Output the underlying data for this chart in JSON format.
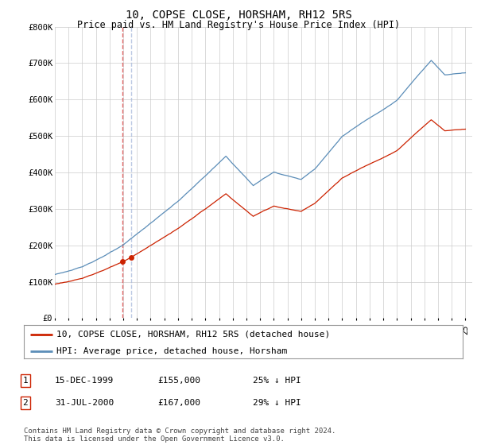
{
  "title": "10, COPSE CLOSE, HORSHAM, RH12 5RS",
  "subtitle": "Price paid vs. HM Land Registry's House Price Index (HPI)",
  "ylim": [
    0,
    800000
  ],
  "yticks": [
    0,
    100000,
    200000,
    300000,
    400000,
    500000,
    600000,
    700000,
    800000
  ],
  "ytick_labels": [
    "£0",
    "£100K",
    "£200K",
    "£300K",
    "£400K",
    "£500K",
    "£600K",
    "£700K",
    "£800K"
  ],
  "hpi_color": "#5b8db8",
  "price_color": "#cc2200",
  "marker_color": "#cc2200",
  "dashed_color1": "#dd4444",
  "dashed_color2": "#aabbdd",
  "t1": 1999.96,
  "t2": 2000.58,
  "price1": 155000,
  "price2": 167000,
  "legend_house_label": "10, COPSE CLOSE, HORSHAM, RH12 5RS (detached house)",
  "legend_hpi_label": "HPI: Average price, detached house, Horsham",
  "table_rows": [
    {
      "num": "1",
      "date": "15-DEC-1999",
      "price": "£155,000",
      "pct": "25% ↓ HPI"
    },
    {
      "num": "2",
      "date": "31-JUL-2000",
      "price": "£167,000",
      "pct": "29% ↓ HPI"
    }
  ],
  "footnote": "Contains HM Land Registry data © Crown copyright and database right 2024.\nThis data is licensed under the Open Government Licence v3.0.",
  "bg_color": "#ffffff",
  "grid_color": "#cccccc",
  "title_fontsize": 10,
  "subtitle_fontsize": 8.5,
  "tick_fontsize": 7.5,
  "legend_fontsize": 8,
  "table_fontsize": 8,
  "footnote_fontsize": 6.5
}
